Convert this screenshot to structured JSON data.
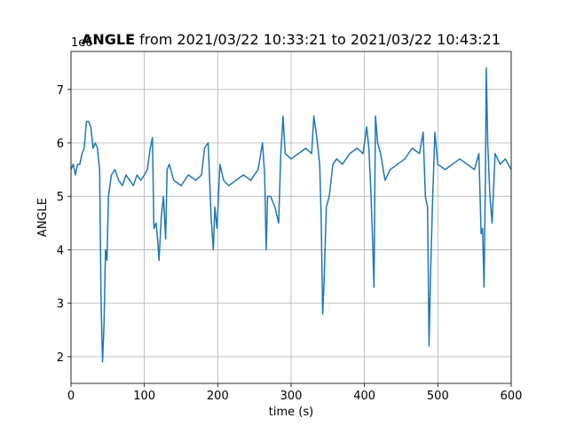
{
  "chart_data": {
    "type": "line",
    "title": {
      "bold": "ANGLE",
      "rest": "from 2021/03/22 10:33:21 to 2021/03/22 10:43:21"
    },
    "x_label": "time (s)",
    "y_label": "ANGLE",
    "y_offset_label": "1e6",
    "xlim": [
      0,
      600
    ],
    "xticks": [
      0,
      100,
      200,
      300,
      400,
      500,
      600
    ],
    "ylim": [
      1.5,
      7.71
    ],
    "yticks": [
      2,
      3,
      4,
      5,
      6,
      7
    ],
    "grid": true,
    "series": [
      {
        "name": "ANGLE",
        "color": "#1f77b4",
        "x": [
          0,
          3,
          6,
          9,
          12,
          15,
          18,
          21,
          24,
          27,
          30,
          33,
          36,
          39,
          41,
          43,
          45,
          47,
          49,
          51,
          55,
          60,
          65,
          70,
          75,
          80,
          85,
          90,
          95,
          100,
          104,
          108,
          111,
          113,
          116,
          118,
          120,
          123,
          126,
          129,
          131,
          134,
          140,
          150,
          160,
          170,
          178,
          182,
          187,
          191,
          194,
          196,
          199,
          203,
          208,
          215,
          225,
          235,
          245,
          255,
          261,
          264,
          266,
          268,
          272,
          278,
          283,
          286,
          289,
          292,
          300,
          310,
          320,
          328,
          331,
          335,
          339,
          341,
          343,
          345,
          348,
          352,
          357,
          362,
          370,
          380,
          390,
          398,
          403,
          406,
          409,
          411,
          413,
          415,
          418,
          422,
          428,
          435,
          445,
          455,
          465,
          475,
          480,
          483,
          486,
          488,
          490,
          493,
          496,
          500,
          510,
          520,
          530,
          540,
          550,
          556,
          559,
          561,
          563,
          565,
          566,
          568,
          571,
          574,
          578,
          585,
          592,
          600
        ],
        "values": [
          5.5,
          5.6,
          5.4,
          5.6,
          5.6,
          5.8,
          5.9,
          6.4,
          6.4,
          6.3,
          5.9,
          6.0,
          5.9,
          5.5,
          3.0,
          1.9,
          2.6,
          4.0,
          3.8,
          5.0,
          5.4,
          5.5,
          5.3,
          5.2,
          5.4,
          5.3,
          5.2,
          5.4,
          5.3,
          5.4,
          5.5,
          5.9,
          6.1,
          4.4,
          4.5,
          4.2,
          3.8,
          4.6,
          5.0,
          4.2,
          5.5,
          5.6,
          5.3,
          5.2,
          5.4,
          5.3,
          5.4,
          5.9,
          6.0,
          4.6,
          4.0,
          4.8,
          4.4,
          5.6,
          5.3,
          5.2,
          5.3,
          5.4,
          5.3,
          5.5,
          6.0,
          5.4,
          4.0,
          5.0,
          5.0,
          4.8,
          4.5,
          5.8,
          6.5,
          5.8,
          5.7,
          5.8,
          5.9,
          5.8,
          6.5,
          6.1,
          5.6,
          4.6,
          2.8,
          3.4,
          4.8,
          5.0,
          5.6,
          5.7,
          5.6,
          5.8,
          5.9,
          5.8,
          6.3,
          5.9,
          5.0,
          4.2,
          3.3,
          6.5,
          6.0,
          5.8,
          5.3,
          5.5,
          5.6,
          5.7,
          5.9,
          5.8,
          6.2,
          5.0,
          4.8,
          2.2,
          3.5,
          5.0,
          6.2,
          5.6,
          5.5,
          5.6,
          5.7,
          5.6,
          5.5,
          5.8,
          4.3,
          4.4,
          3.3,
          5.5,
          7.4,
          6.0,
          5.0,
          4.5,
          5.8,
          5.6,
          5.7,
          5.5
        ]
      }
    ]
  }
}
